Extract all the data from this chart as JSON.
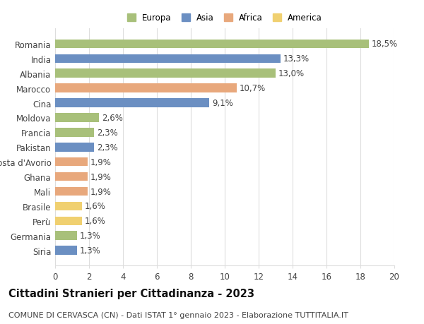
{
  "countries": [
    "Romania",
    "India",
    "Albania",
    "Marocco",
    "Cina",
    "Moldova",
    "Francia",
    "Pakistan",
    "Costa d'Avorio",
    "Ghana",
    "Mali",
    "Brasile",
    "Perù",
    "Germania",
    "Siria"
  ],
  "values": [
    18.5,
    13.3,
    13.0,
    10.7,
    9.1,
    2.6,
    2.3,
    2.3,
    1.9,
    1.9,
    1.9,
    1.6,
    1.6,
    1.3,
    1.3
  ],
  "labels": [
    "18,5%",
    "13,3%",
    "13,0%",
    "10,7%",
    "9,1%",
    "2,6%",
    "2,3%",
    "2,3%",
    "1,9%",
    "1,9%",
    "1,9%",
    "1,6%",
    "1,6%",
    "1,3%",
    "1,3%"
  ],
  "continents": [
    "Europa",
    "Asia",
    "Europa",
    "Africa",
    "Asia",
    "Europa",
    "Europa",
    "Asia",
    "Africa",
    "Africa",
    "Africa",
    "America",
    "America",
    "Europa",
    "Asia"
  ],
  "continent_colors": {
    "Europa": "#a8c07a",
    "Asia": "#6b8fc2",
    "Africa": "#e8a87c",
    "America": "#f0d070"
  },
  "legend_order": [
    "Europa",
    "Asia",
    "Africa",
    "America"
  ],
  "title": "Cittadini Stranieri per Cittadinanza - 2023",
  "subtitle": "COMUNE DI CERVASCA (CN) - Dati ISTAT 1° gennaio 2023 - Elaborazione TUTTITALIA.IT",
  "xlim": [
    0,
    20
  ],
  "xticks": [
    0,
    2,
    4,
    6,
    8,
    10,
    12,
    14,
    16,
    18,
    20
  ],
  "background_color": "#ffffff",
  "grid_color": "#dddddd",
  "bar_height": 0.6,
  "label_fontsize": 8.5,
  "tick_fontsize": 8.5,
  "title_fontsize": 10.5,
  "subtitle_fontsize": 8.0
}
